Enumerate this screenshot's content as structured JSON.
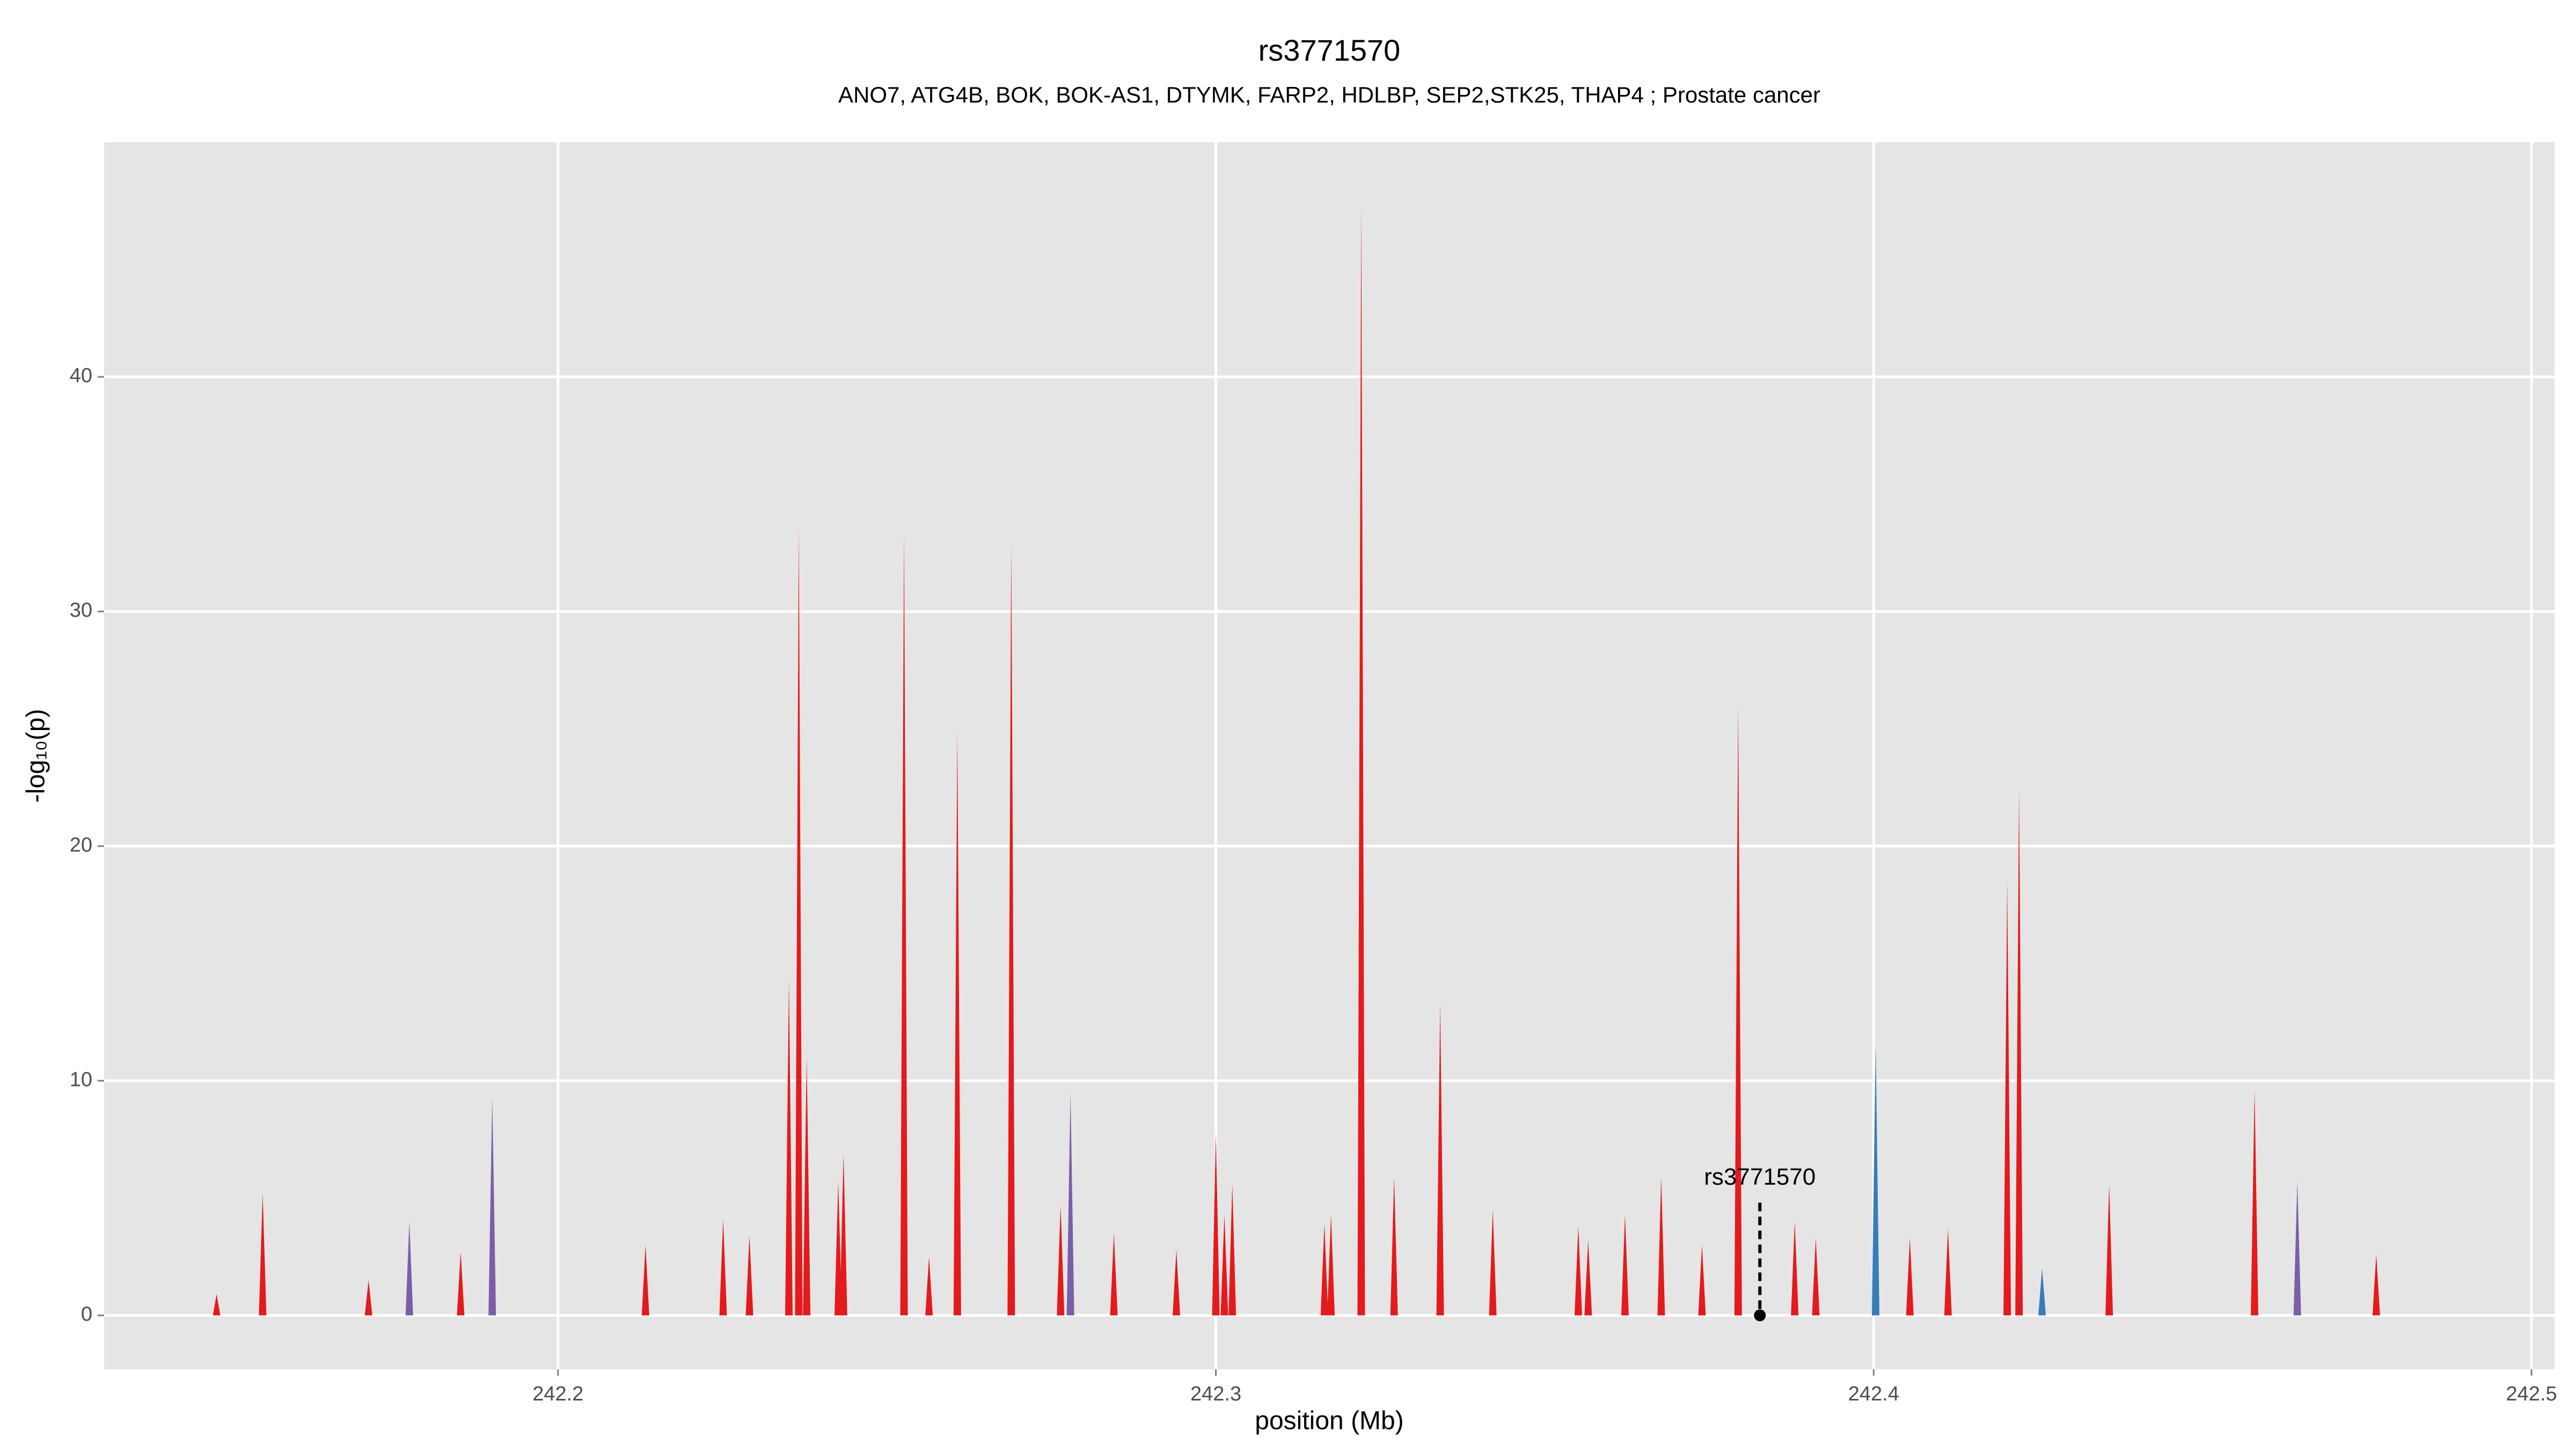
{
  "chart_data": {
    "type": "spike",
    "title": "rs3771570",
    "subtitle": "ANO7, ATG4B, BOK, BOK-AS1, DTYMK, FARP2, HDLBP, SEP2,STK25, THAP4 ; Prostate cancer",
    "x_label": "position (Mb)",
    "y_label": "-log₁₀(p)",
    "xlim": [
      242.131,
      242.5035
    ],
    "ylim": [
      -2.3,
      50
    ],
    "xticks": [
      242.2,
      242.3,
      242.4,
      242.5
    ],
    "yticks": [
      0,
      10,
      20,
      30,
      40
    ],
    "grid": true,
    "series": [
      {
        "name": "red",
        "color": "#e41a1c",
        "x": [
          242.1481,
          242.1551,
          242.1712,
          242.1852,
          242.2133,
          242.2251,
          242.2291,
          242.2351,
          242.2366,
          242.2378,
          242.2426,
          242.2434,
          242.2526,
          242.2564,
          242.2607,
          242.2689,
          242.2764,
          242.2845,
          242.294,
          242.3,
          242.3013,
          242.3025,
          242.3165,
          242.3175,
          242.3221,
          242.3271,
          242.3341,
          242.3421,
          242.3551,
          242.3566,
          242.3622,
          242.3677,
          242.3739,
          242.3794,
          242.388,
          242.3912,
          242.4055,
          242.4113,
          242.4203,
          242.4221,
          242.4358,
          242.4579,
          242.4764
        ],
        "values": [
          0.9,
          5.2,
          1.5,
          2.7,
          3.0,
          4.1,
          3.4,
          14.3,
          33.6,
          11.0,
          5.7,
          6.9,
          33.3,
          2.5,
          24.9,
          32.9,
          4.7,
          3.5,
          2.8,
          7.8,
          4.3,
          5.6,
          3.9,
          4.3,
          47.4,
          5.9,
          13.3,
          4.5,
          3.8,
          3.2,
          4.3,
          5.9,
          3.0,
          26.0,
          4.0,
          3.3,
          3.3,
          3.7,
          18.5,
          22.4,
          5.6,
          9.6,
          2.6
        ]
      },
      {
        "name": "blue",
        "color": "#377eb8",
        "x": [
          242.4003,
          242.4256
        ],
        "values": [
          11.6,
          2.0
        ]
      },
      {
        "name": "purple",
        "color": "#7b5ea7",
        "x": [
          242.1774,
          242.19,
          242.2779,
          242.4644
        ],
        "values": [
          4.0,
          9.3,
          9.5,
          5.7
        ]
      }
    ],
    "annotation": {
      "label": "rs3771570",
      "x": 242.3827,
      "y": 0
    }
  }
}
